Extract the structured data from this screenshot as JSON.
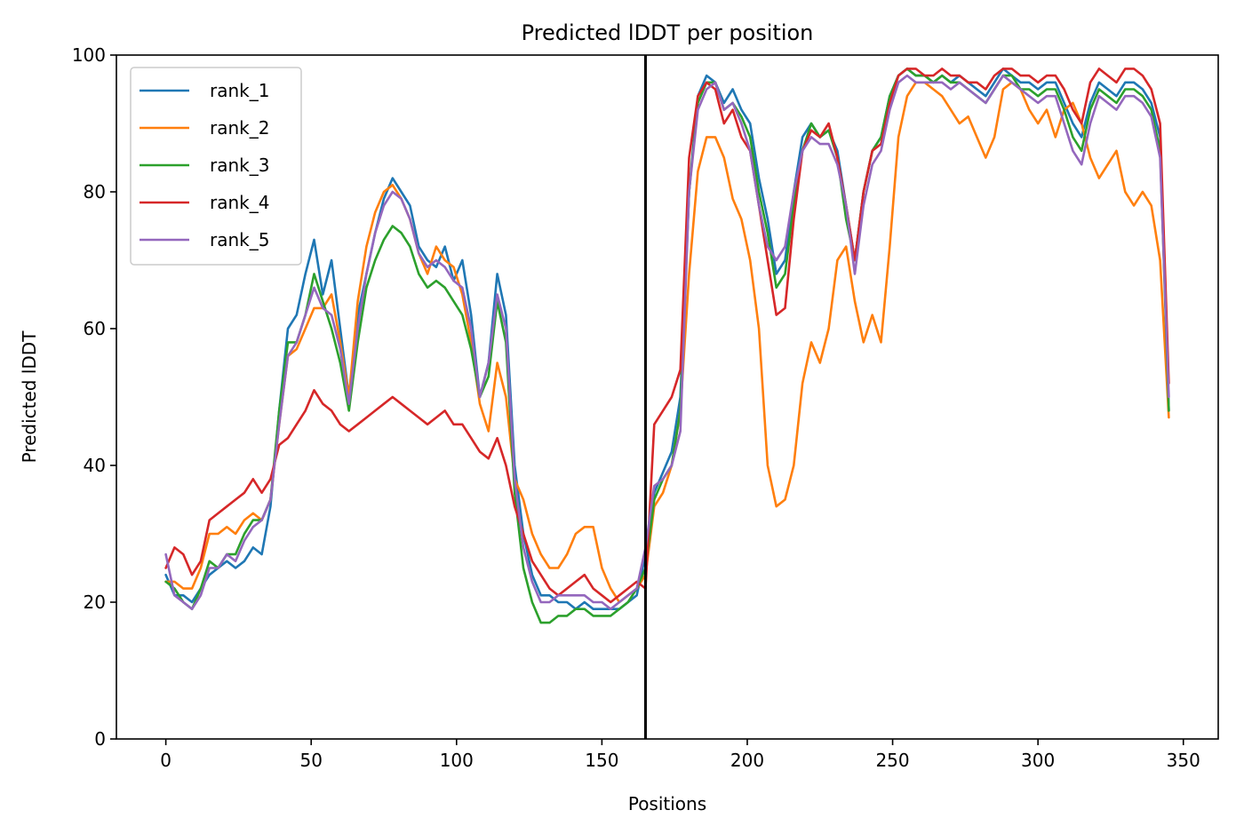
{
  "chart_data": {
    "type": "line",
    "title": "Predicted lDDT per position",
    "xlabel": "Positions",
    "ylabel": "Predicted lDDT",
    "xlim": [
      -17,
      362
    ],
    "ylim": [
      0,
      100
    ],
    "xticks": [
      0,
      50,
      100,
      150,
      200,
      250,
      300,
      350
    ],
    "yticks": [
      0,
      20,
      40,
      60,
      80,
      100
    ],
    "grid": false,
    "legend_position": "top-left",
    "vline": 165,
    "vline_color": "#000000",
    "series": [
      {
        "name": "rank_1",
        "color": "#1f77b4",
        "x": [
          0,
          3,
          6,
          9,
          12,
          15,
          18,
          21,
          24,
          27,
          30,
          33,
          36,
          39,
          42,
          45,
          48,
          51,
          54,
          57,
          60,
          63,
          66,
          69,
          72,
          75,
          78,
          81,
          84,
          87,
          90,
          93,
          96,
          99,
          102,
          105,
          108,
          111,
          114,
          117,
          120,
          123,
          126,
          129,
          132,
          135,
          138,
          141,
          144,
          147,
          150,
          153,
          156,
          159,
          162,
          165,
          168,
          171,
          174,
          177,
          180,
          183,
          186,
          189,
          192,
          195,
          198,
          201,
          204,
          207,
          210,
          213,
          216,
          219,
          222,
          225,
          228,
          231,
          234,
          237,
          240,
          243,
          246,
          249,
          252,
          255,
          258,
          261,
          264,
          267,
          270,
          273,
          276,
          279,
          282,
          285,
          288,
          291,
          294,
          297,
          300,
          303,
          306,
          309,
          312,
          315,
          318,
          321,
          324,
          327,
          330,
          333,
          336,
          339,
          342,
          345
        ],
        "y": [
          24,
          21,
          21,
          20,
          22,
          24,
          25,
          26,
          25,
          26,
          28,
          27,
          34,
          48,
          60,
          62,
          68,
          73,
          65,
          70,
          60,
          50,
          62,
          68,
          74,
          79,
          82,
          80,
          78,
          72,
          70,
          69,
          72,
          67,
          70,
          62,
          50,
          55,
          68,
          62,
          40,
          30,
          24,
          21,
          21,
          20,
          20,
          19,
          20,
          19,
          19,
          19,
          19,
          20,
          21,
          27,
          36,
          39,
          42,
          50,
          80,
          94,
          97,
          96,
          93,
          95,
          92,
          90,
          82,
          76,
          68,
          70,
          80,
          88,
          90,
          88,
          89,
          86,
          78,
          70,
          80,
          86,
          88,
          94,
          97,
          98,
          97,
          97,
          96,
          97,
          96,
          97,
          96,
          95,
          94,
          96,
          98,
          97,
          96,
          96,
          95,
          96,
          96,
          93,
          90,
          88,
          93,
          96,
          95,
          94,
          96,
          96,
          95,
          93,
          88,
          48
        ]
      },
      {
        "name": "rank_2",
        "color": "#ff7f0e",
        "x": [
          0,
          3,
          6,
          9,
          12,
          15,
          18,
          21,
          24,
          27,
          30,
          33,
          36,
          39,
          42,
          45,
          48,
          51,
          54,
          57,
          60,
          63,
          66,
          69,
          72,
          75,
          78,
          81,
          84,
          87,
          90,
          93,
          96,
          99,
          102,
          105,
          108,
          111,
          114,
          117,
          120,
          123,
          126,
          129,
          132,
          135,
          138,
          141,
          144,
          147,
          150,
          153,
          156,
          159,
          162,
          165,
          168,
          171,
          174,
          177,
          180,
          183,
          186,
          189,
          192,
          195,
          198,
          201,
          204,
          207,
          210,
          213,
          216,
          219,
          222,
          225,
          228,
          231,
          234,
          237,
          240,
          243,
          246,
          249,
          252,
          255,
          258,
          261,
          264,
          267,
          270,
          273,
          276,
          279,
          282,
          285,
          288,
          291,
          294,
          297,
          300,
          303,
          306,
          309,
          312,
          315,
          318,
          321,
          324,
          327,
          330,
          333,
          336,
          339,
          342,
          345
        ],
        "y": [
          23,
          23,
          22,
          22,
          25,
          30,
          30,
          31,
          30,
          32,
          33,
          32,
          35,
          46,
          56,
          57,
          60,
          63,
          63,
          65,
          58,
          50,
          64,
          72,
          77,
          80,
          81,
          79,
          76,
          71,
          68,
          72,
          70,
          69,
          65,
          58,
          49,
          45,
          55,
          50,
          38,
          35,
          30,
          27,
          25,
          25,
          27,
          30,
          31,
          31,
          25,
          22,
          20,
          21,
          22,
          24,
          34,
          36,
          40,
          48,
          68,
          83,
          88,
          88,
          85,
          79,
          76,
          70,
          60,
          40,
          34,
          35,
          40,
          52,
          58,
          55,
          60,
          70,
          72,
          64,
          58,
          62,
          58,
          72,
          88,
          94,
          96,
          96,
          95,
          94,
          92,
          90,
          91,
          88,
          85,
          88,
          95,
          96,
          95,
          92,
          90,
          92,
          88,
          92,
          93,
          90,
          85,
          82,
          84,
          86,
          80,
          78,
          80,
          78,
          70,
          47
        ]
      },
      {
        "name": "rank_3",
        "color": "#2ca02c",
        "x": [
          0,
          3,
          6,
          9,
          12,
          15,
          18,
          21,
          24,
          27,
          30,
          33,
          36,
          39,
          42,
          45,
          48,
          51,
          54,
          57,
          60,
          63,
          66,
          69,
          72,
          75,
          78,
          81,
          84,
          87,
          90,
          93,
          96,
          99,
          102,
          105,
          108,
          111,
          114,
          117,
          120,
          123,
          126,
          129,
          132,
          135,
          138,
          141,
          144,
          147,
          150,
          153,
          156,
          159,
          162,
          165,
          168,
          171,
          174,
          177,
          180,
          183,
          186,
          189,
          192,
          195,
          198,
          201,
          204,
          207,
          210,
          213,
          216,
          219,
          222,
          225,
          228,
          231,
          234,
          237,
          240,
          243,
          246,
          249,
          252,
          255,
          258,
          261,
          264,
          267,
          270,
          273,
          276,
          279,
          282,
          285,
          288,
          291,
          294,
          297,
          300,
          303,
          306,
          309,
          312,
          315,
          318,
          321,
          324,
          327,
          330,
          333,
          336,
          339,
          342,
          345
        ],
        "y": [
          23,
          22,
          20,
          19,
          22,
          26,
          25,
          27,
          27,
          30,
          32,
          32,
          35,
          48,
          58,
          58,
          62,
          68,
          64,
          60,
          55,
          48,
          58,
          66,
          70,
          73,
          75,
          74,
          72,
          68,
          66,
          67,
          66,
          64,
          62,
          57,
          50,
          53,
          64,
          58,
          36,
          25,
          20,
          17,
          17,
          18,
          18,
          19,
          19,
          18,
          18,
          18,
          19,
          20,
          22,
          25,
          35,
          38,
          40,
          48,
          80,
          93,
          96,
          96,
          92,
          93,
          91,
          88,
          80,
          74,
          66,
          68,
          78,
          86,
          90,
          88,
          89,
          85,
          76,
          70,
          80,
          86,
          88,
          94,
          97,
          98,
          97,
          97,
          96,
          97,
          96,
          96,
          95,
          94,
          93,
          95,
          97,
          97,
          95,
          95,
          94,
          95,
          95,
          92,
          88,
          86,
          92,
          95,
          94,
          93,
          95,
          95,
          94,
          92,
          86,
          48
        ]
      },
      {
        "name": "rank_4",
        "color": "#d62728",
        "x": [
          0,
          3,
          6,
          9,
          12,
          15,
          18,
          21,
          24,
          27,
          30,
          33,
          36,
          39,
          42,
          45,
          48,
          51,
          54,
          57,
          60,
          63,
          66,
          69,
          72,
          75,
          78,
          81,
          84,
          87,
          90,
          93,
          96,
          99,
          102,
          105,
          108,
          111,
          114,
          117,
          120,
          123,
          126,
          129,
          132,
          135,
          138,
          141,
          144,
          147,
          150,
          153,
          156,
          159,
          162,
          165,
          168,
          171,
          174,
          177,
          180,
          183,
          186,
          189,
          192,
          195,
          198,
          201,
          204,
          207,
          210,
          213,
          216,
          219,
          222,
          225,
          228,
          231,
          234,
          237,
          240,
          243,
          246,
          249,
          252,
          255,
          258,
          261,
          264,
          267,
          270,
          273,
          276,
          279,
          282,
          285,
          288,
          291,
          294,
          297,
          300,
          303,
          306,
          309,
          312,
          315,
          318,
          321,
          324,
          327,
          330,
          333,
          336,
          339,
          342,
          345
        ],
        "y": [
          25,
          28,
          27,
          24,
          26,
          32,
          33,
          34,
          35,
          36,
          38,
          36,
          38,
          43,
          44,
          46,
          48,
          51,
          49,
          48,
          46,
          45,
          46,
          47,
          48,
          49,
          50,
          49,
          48,
          47,
          46,
          47,
          48,
          46,
          46,
          44,
          42,
          41,
          44,
          40,
          34,
          30,
          26,
          24,
          22,
          21,
          22,
          23,
          24,
          22,
          21,
          20,
          21,
          22,
          23,
          22,
          46,
          48,
          50,
          54,
          85,
          94,
          96,
          95,
          90,
          92,
          88,
          86,
          78,
          70,
          62,
          63,
          76,
          86,
          89,
          88,
          90,
          85,
          78,
          70,
          80,
          86,
          87,
          93,
          97,
          98,
          98,
          97,
          97,
          98,
          97,
          97,
          96,
          96,
          95,
          97,
          98,
          98,
          97,
          97,
          96,
          97,
          97,
          95,
          92,
          90,
          96,
          98,
          97,
          96,
          98,
          98,
          97,
          95,
          90,
          52
        ]
      },
      {
        "name": "rank_5",
        "color": "#9467bd",
        "x": [
          0,
          3,
          6,
          9,
          12,
          15,
          18,
          21,
          24,
          27,
          30,
          33,
          36,
          39,
          42,
          45,
          48,
          51,
          54,
          57,
          60,
          63,
          66,
          69,
          72,
          75,
          78,
          81,
          84,
          87,
          90,
          93,
          96,
          99,
          102,
          105,
          108,
          111,
          114,
          117,
          120,
          123,
          126,
          129,
          132,
          135,
          138,
          141,
          144,
          147,
          150,
          153,
          156,
          159,
          162,
          165,
          168,
          171,
          174,
          177,
          180,
          183,
          186,
          189,
          192,
          195,
          198,
          201,
          204,
          207,
          210,
          213,
          216,
          219,
          222,
          225,
          228,
          231,
          234,
          237,
          240,
          243,
          246,
          249,
          252,
          255,
          258,
          261,
          264,
          267,
          270,
          273,
          276,
          279,
          282,
          285,
          288,
          291,
          294,
          297,
          300,
          303,
          306,
          309,
          312,
          315,
          318,
          321,
          324,
          327,
          330,
          333,
          336,
          339,
          342,
          345
        ],
        "y": [
          27,
          21,
          20,
          19,
          21,
          25,
          25,
          27,
          26,
          29,
          31,
          32,
          35,
          46,
          56,
          58,
          62,
          66,
          63,
          62,
          57,
          49,
          60,
          68,
          74,
          78,
          80,
          79,
          76,
          71,
          69,
          70,
          69,
          67,
          66,
          60,
          50,
          55,
          65,
          60,
          38,
          28,
          23,
          20,
          20,
          21,
          21,
          21,
          21,
          20,
          20,
          19,
          20,
          21,
          22,
          28,
          37,
          38,
          40,
          45,
          80,
          92,
          95,
          96,
          92,
          93,
          90,
          86,
          78,
          72,
          70,
          72,
          80,
          86,
          88,
          87,
          87,
          84,
          78,
          68,
          78,
          84,
          86,
          92,
          96,
          97,
          96,
          96,
          96,
          96,
          95,
          96,
          95,
          94,
          93,
          95,
          97,
          96,
          95,
          94,
          93,
          94,
          94,
          90,
          86,
          84,
          90,
          94,
          93,
          92,
          94,
          94,
          93,
          91,
          85,
          50
        ]
      }
    ]
  }
}
